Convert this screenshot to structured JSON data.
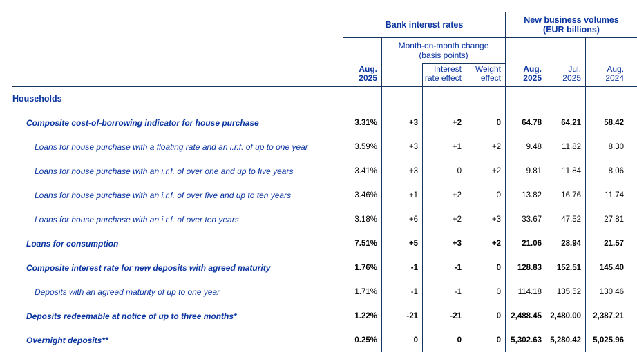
{
  "table": {
    "groups": {
      "bank_interest_rates": "Bank interest rates",
      "new_business_volumes_line1": "New business volumes",
      "new_business_volumes_line2": "(EUR billions)"
    },
    "mom_header": {
      "line1": "Month-on-month change",
      "line2": "(basis points)"
    },
    "columns": [
      {
        "line1": "Aug.",
        "line2": "2025"
      },
      {
        "line1": "Interest",
        "line2": "rate effect"
      },
      {
        "line1": "Weight",
        "line2": "effect"
      },
      {
        "line1": "Aug.",
        "line2": "2025"
      },
      {
        "line1": "Jul.",
        "line2": "2025"
      },
      {
        "line1": "Aug.",
        "line2": "2024"
      }
    ],
    "rows": [
      {
        "label": "Households",
        "style": "section",
        "values": [
          "",
          "",
          "",
          "",
          "",
          "",
          ""
        ]
      },
      {
        "label": "Composite cost-of-borrowing indicator for house purchase",
        "style": "bold-italic",
        "values": [
          "3.31%",
          "+3",
          "+2",
          "0",
          "64.78",
          "64.21",
          "58.42"
        ]
      },
      {
        "label": "Loans for house purchase with a floating rate and an i.r.f. of up to one year",
        "style": "italic",
        "values": [
          "3.59%",
          "+3",
          "+1",
          "+2",
          "9.48",
          "11.82",
          "8.30"
        ]
      },
      {
        "label": "Loans for house purchase with an i.r.f. of over one and up to five years",
        "style": "italic",
        "values": [
          "3.41%",
          "+3",
          "0",
          "+2",
          "9.81",
          "11.84",
          "8.06"
        ]
      },
      {
        "label": "Loans for house purchase with an i.r.f. of over five and up to ten years",
        "style": "italic",
        "values": [
          "3.46%",
          "+1",
          "+2",
          "0",
          "13.82",
          "16.76",
          "11.74"
        ]
      },
      {
        "label": "Loans for house purchase with an i.r.f. of over ten years",
        "style": "italic",
        "values": [
          "3.18%",
          "+6",
          "+2",
          "+3",
          "33.67",
          "47.52",
          "27.81"
        ]
      },
      {
        "label": "Loans for consumption",
        "style": "bold-italic",
        "values": [
          "7.51%",
          "+5",
          "+3",
          "+2",
          "21.06",
          "28.94",
          "21.57"
        ]
      },
      {
        "label": "Composite interest rate for new deposits with agreed maturity",
        "style": "bold-italic",
        "values": [
          "1.76%",
          "-1",
          "-1",
          "0",
          "128.83",
          "152.51",
          "145.40"
        ]
      },
      {
        "label": "Deposits with an agreed maturity of up to one year",
        "style": "italic",
        "values": [
          "1.71%",
          "-1",
          "-1",
          "0",
          "114.18",
          "135.52",
          "130.46"
        ]
      },
      {
        "label": "Deposits redeemable at notice of up to three months*",
        "style": "bold-italic",
        "values": [
          "1.22%",
          "-21",
          "-21",
          "0",
          "2,488.45",
          "2,480.00",
          "2,387.21"
        ]
      },
      {
        "label": "Overnight deposits**",
        "style": "bold-italic",
        "values": [
          "0.25%",
          "0",
          "0",
          "0",
          "5,302.63",
          "5,280.42",
          "5,025.96"
        ]
      }
    ]
  },
  "colors": {
    "text_blue": "#0A34A0",
    "rule_navy": "#17365D",
    "data_black": "#000000",
    "background": "#FFFFFF"
  }
}
